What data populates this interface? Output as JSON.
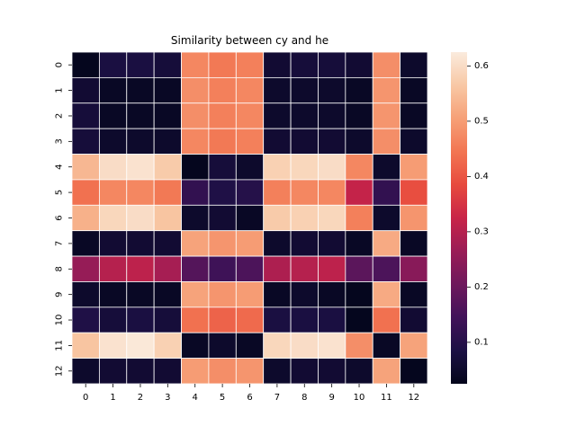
{
  "chart_data": {
    "type": "heatmap",
    "title": "Similarity between cy and he",
    "xlabel": "",
    "ylabel": "",
    "x_categories": [
      "0",
      "1",
      "2",
      "3",
      "4",
      "5",
      "6",
      "7",
      "8",
      "9",
      "10",
      "11",
      "12"
    ],
    "y_categories": [
      "0",
      "1",
      "2",
      "3",
      "4",
      "5",
      "6",
      "7",
      "8",
      "9",
      "10",
      "11",
      "12"
    ],
    "colormap": "rocket",
    "vmin": 0.025,
    "vmax": 0.625,
    "colorbar_ticks": [
      0.1,
      0.2,
      0.3,
      0.4,
      0.5,
      0.6
    ],
    "colorbar_tick_labels": [
      "0.1",
      "0.2",
      "0.3",
      "0.4",
      "0.5",
      "0.6"
    ],
    "values": [
      [
        0.03,
        0.08,
        0.08,
        0.07,
        0.47,
        0.45,
        0.46,
        0.06,
        0.07,
        0.07,
        0.06,
        0.48,
        0.05
      ],
      [
        0.06,
        0.04,
        0.04,
        0.04,
        0.48,
        0.46,
        0.47,
        0.05,
        0.05,
        0.05,
        0.04,
        0.49,
        0.04
      ],
      [
        0.07,
        0.04,
        0.04,
        0.04,
        0.48,
        0.46,
        0.47,
        0.05,
        0.05,
        0.05,
        0.04,
        0.49,
        0.04
      ],
      [
        0.07,
        0.05,
        0.05,
        0.05,
        0.47,
        0.45,
        0.46,
        0.06,
        0.06,
        0.06,
        0.05,
        0.48,
        0.05
      ],
      [
        0.54,
        0.6,
        0.61,
        0.57,
        0.03,
        0.07,
        0.05,
        0.58,
        0.59,
        0.6,
        0.47,
        0.05,
        0.5
      ],
      [
        0.44,
        0.47,
        0.47,
        0.45,
        0.12,
        0.09,
        0.1,
        0.46,
        0.47,
        0.47,
        0.32,
        0.12,
        0.39
      ],
      [
        0.53,
        0.59,
        0.6,
        0.56,
        0.05,
        0.06,
        0.04,
        0.57,
        0.58,
        0.59,
        0.46,
        0.05,
        0.49
      ],
      [
        0.04,
        0.06,
        0.06,
        0.06,
        0.51,
        0.49,
        0.5,
        0.05,
        0.06,
        0.06,
        0.04,
        0.52,
        0.04
      ],
      [
        0.26,
        0.3,
        0.31,
        0.28,
        0.17,
        0.14,
        0.16,
        0.29,
        0.3,
        0.31,
        0.18,
        0.16,
        0.24
      ],
      [
        0.05,
        0.04,
        0.04,
        0.04,
        0.51,
        0.49,
        0.5,
        0.04,
        0.05,
        0.04,
        0.03,
        0.52,
        0.04
      ],
      [
        0.09,
        0.07,
        0.08,
        0.07,
        0.44,
        0.42,
        0.43,
        0.08,
        0.08,
        0.08,
        0.03,
        0.44,
        0.06
      ],
      [
        0.56,
        0.61,
        0.62,
        0.58,
        0.04,
        0.05,
        0.04,
        0.59,
        0.6,
        0.61,
        0.48,
        0.04,
        0.51
      ],
      [
        0.05,
        0.06,
        0.06,
        0.06,
        0.5,
        0.48,
        0.49,
        0.05,
        0.06,
        0.06,
        0.05,
        0.51,
        0.03
      ]
    ]
  }
}
